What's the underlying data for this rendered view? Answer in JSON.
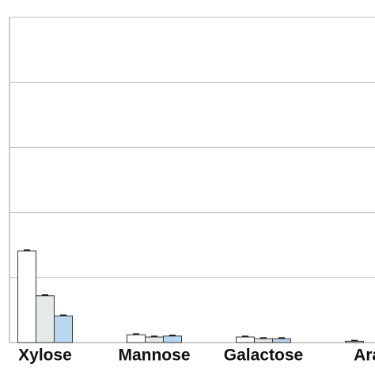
{
  "chart_data": {
    "type": "bar",
    "categories": [
      "Xylose",
      "Mannose",
      "Galactose",
      "Arab"
    ],
    "series": [
      {
        "color": "#ffffff",
        "values": [
          1.41,
          0.12,
          0.085,
          0.02
        ]
      },
      {
        "color": "#e6eae7",
        "values": [
          0.72,
          0.085,
          0.06,
          null
        ]
      },
      {
        "color": "#b9d7f0",
        "values": [
          0.41,
          0.1,
          0.06,
          null
        ]
      }
    ],
    "ylim": [
      0,
      5
    ],
    "yticks": [
      1,
      2,
      3,
      4,
      5
    ],
    "grid": true
  }
}
